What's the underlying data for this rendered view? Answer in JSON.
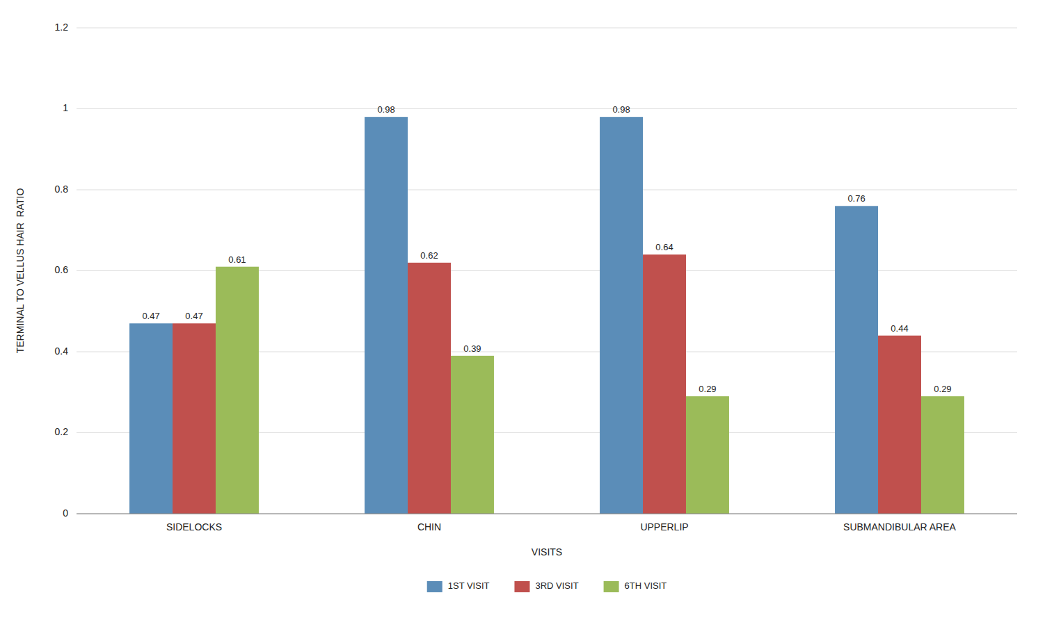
{
  "chart_data": {
    "type": "bar",
    "categories": [
      "SIDELOCKS",
      "CHIN",
      "UPPERLIP",
      "SUBMANDIBULAR AREA"
    ],
    "series": [
      {
        "name": "1ST VISIT",
        "color": "#5B8DB8",
        "values": [
          0.47,
          0.98,
          0.98,
          0.76
        ]
      },
      {
        "name": "3RD VISIT",
        "color": "#C0504D",
        "values": [
          0.47,
          0.62,
          0.64,
          0.44
        ]
      },
      {
        "name": "6TH VISIT",
        "color": "#9BBB59",
        "values": [
          0.61,
          0.39,
          0.29,
          0.29
        ]
      }
    ],
    "xlabel": "VISITS",
    "ylabel": "TERMINAL TO VELLUS HAIR  RATIO",
    "ylim": [
      0,
      1.2
    ],
    "yticks": [
      0,
      0.2,
      0.4,
      0.6,
      0.8,
      1,
      1.2
    ],
    "grid": true,
    "legend": "bottom",
    "data_labels": true
  }
}
